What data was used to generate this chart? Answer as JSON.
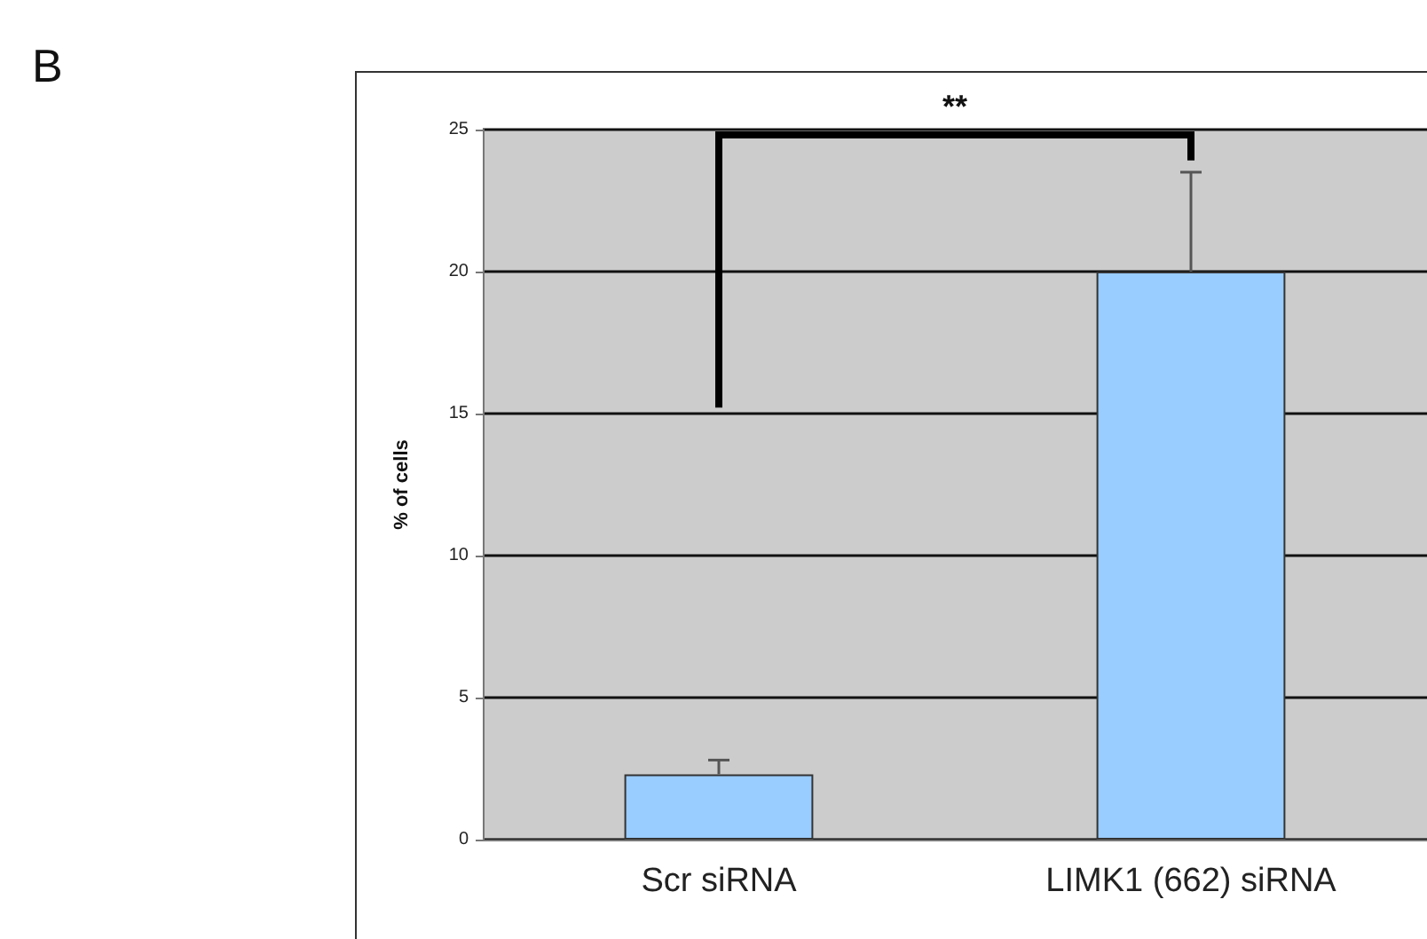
{
  "chart_data": {
    "type": "bar",
    "ylabel": "% of cells",
    "categories": [
      "Scr siRNA",
      "LIMK1 (662) siRNA"
    ],
    "series": [
      {
        "color": "#99ccff",
        "values": [
          2.3,
          20
        ],
        "errors": [
          [
            2.3,
            2.8
          ],
          [
            20,
            23.5
          ]
        ]
      }
    ],
    "ylim": [
      0,
      25
    ],
    "yticks": [
      0,
      5,
      10,
      15,
      20,
      25
    ],
    "grid": "y",
    "annotations": [
      "B",
      "**"
    ]
  }
}
